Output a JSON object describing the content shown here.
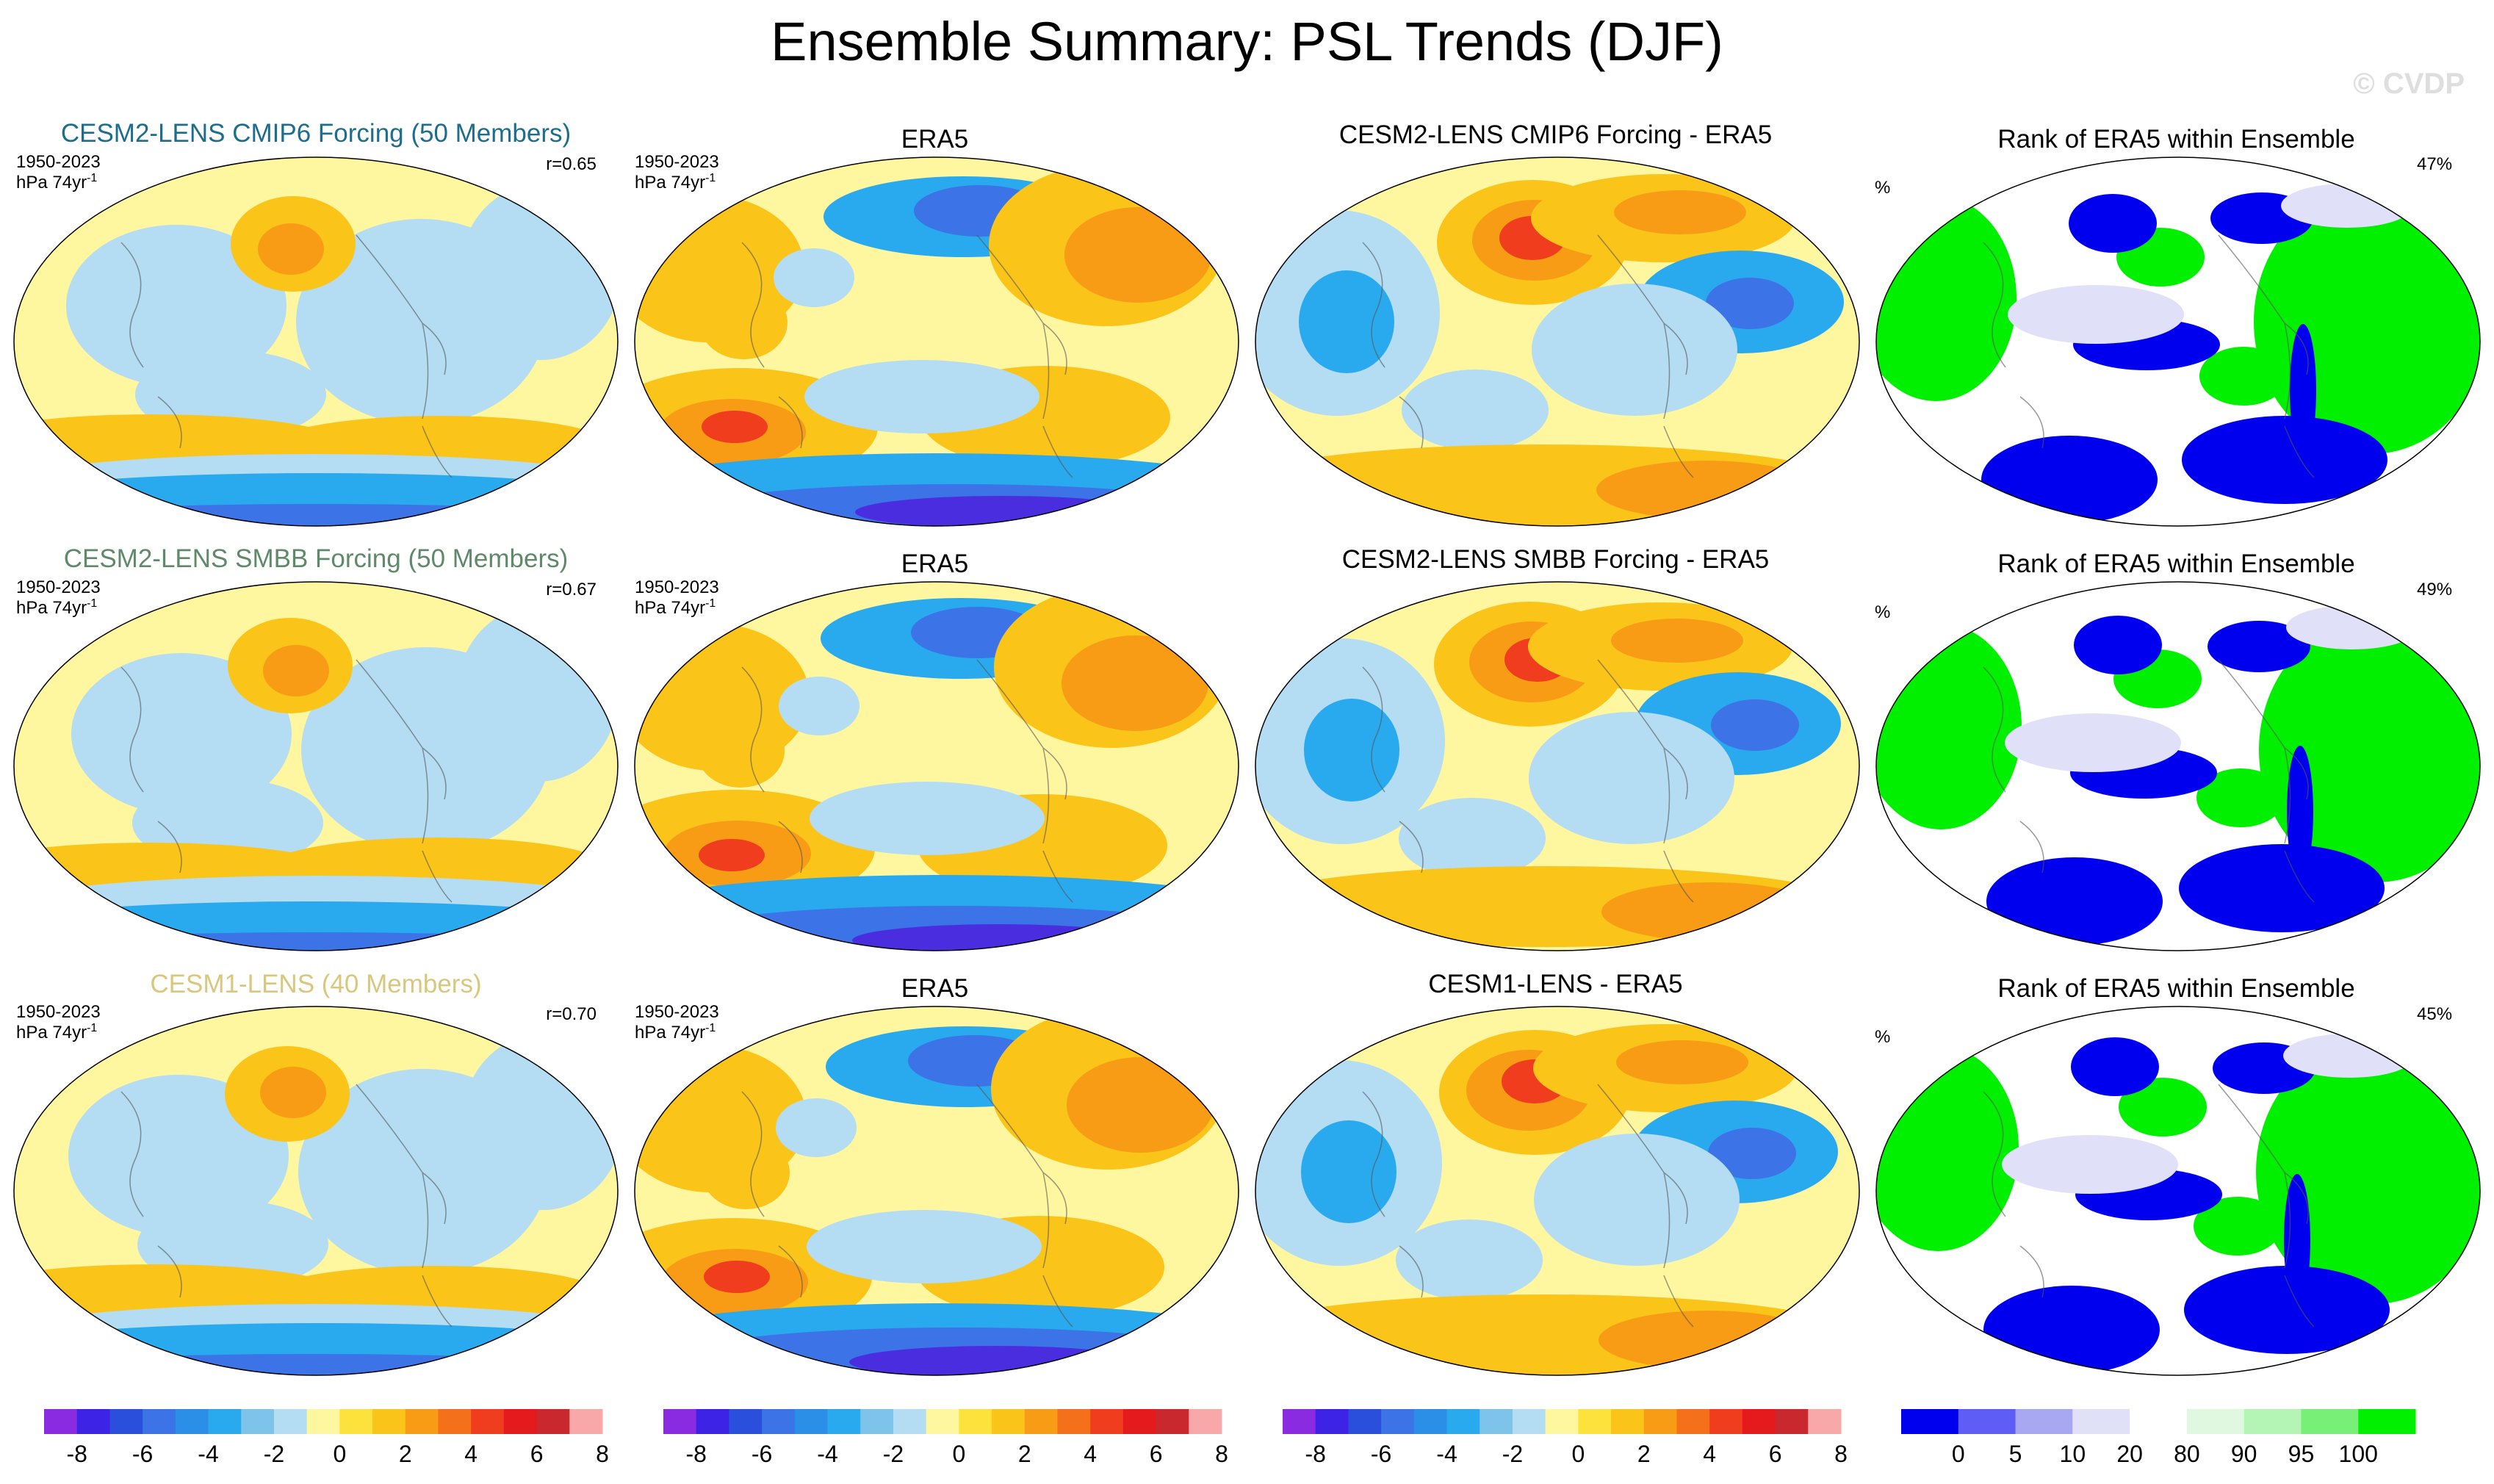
{
  "title": "Ensemble Summary: PSL Trends (DJF)",
  "watermark": "© CVDP",
  "rows": [
    {
      "model_title": "CESM2-LENS CMIP6 Forcing (50 Members)",
      "model_title_color": "#1d6e8c",
      "period": "1950-2023",
      "units": "hPa 74yr",
      "units_exp": "-1",
      "corr": "r=0.65",
      "obs_title": "ERA5",
      "diff_title": "CESM2-LENS CMIP6 Forcing - ERA5",
      "rank_title": "Rank of ERA5 within Ensemble",
      "rank_unit": "%",
      "rank_pct": "47%"
    },
    {
      "model_title": "CESM2-LENS SMBB Forcing (50 Members)",
      "model_title_color": "#5f8a6a",
      "period": "1950-2023",
      "units": "hPa 74yr",
      "units_exp": "-1",
      "corr": "r=0.67",
      "obs_title": "ERA5",
      "diff_title": "CESM2-LENS SMBB Forcing - ERA5",
      "rank_title": "Rank of ERA5 within Ensemble",
      "rank_unit": "%",
      "rank_pct": "49%"
    },
    {
      "model_title": "CESM1-LENS (40 Members)",
      "model_title_color": "#d9c77e",
      "period": "1950-2023",
      "units": "hPa 74yr",
      "units_exp": "-1",
      "corr": "r=0.70",
      "obs_title": "ERA5",
      "diff_title": "CESM1-LENS - ERA5",
      "rank_title": "Rank of ERA5 within Ensemble",
      "rank_unit": "%",
      "rank_pct": "45%"
    }
  ],
  "trend_colorbar": {
    "colors": [
      "#8a2be2",
      "#3c23e6",
      "#2a4fdd",
      "#3c73e6",
      "#2b8fe8",
      "#2aaaee",
      "#7ec4ea",
      "#b4dcf2",
      "#fff6a0",
      "#fde23c",
      "#fbc419",
      "#f89c16",
      "#f4701a",
      "#f03d1e",
      "#e41a1c",
      "#c8282e",
      "#f8a8a8"
    ],
    "labels": [
      "-8",
      "-6",
      "-4",
      "-2",
      "0",
      "2",
      "4",
      "6",
      "8"
    ]
  },
  "rank_colorbar": {
    "colors": [
      "#0000ee",
      "#5e5ef6",
      "#a8a8f2",
      "#e0e0f8",
      "#ffffff",
      "#e0f8e0",
      "#b4f4b4",
      "#78f078",
      "#00f000"
    ],
    "labels": [
      "0",
      "5",
      "10",
      "20",
      "80",
      "90",
      "95",
      "100"
    ]
  },
  "palette": {
    "yellow": "#fff6a0",
    "lightblue": "#b4dcf2",
    "blue": "#2aaaee",
    "darkblue": "#3c73e6",
    "purple": "#4b2de0",
    "orange": "#f89c16",
    "lightorange": "#fbc419",
    "red": "#f03d1e",
    "green": "#00f000",
    "lightgreen": "#b4f4b4",
    "rankblue": "#0000ee",
    "ranklav": "#e0e0f8"
  }
}
